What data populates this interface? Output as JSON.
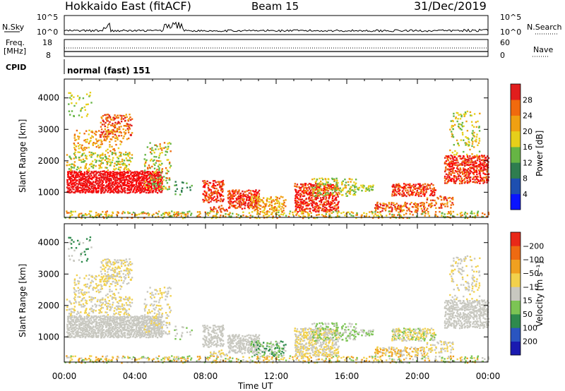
{
  "header": {
    "title": "Hokkaido East (fitACF)",
    "beam": "Beam 15",
    "date": "31/Dec/2019"
  },
  "colors": {
    "power_scale": [
      "#0a14ff",
      "#1e4fb0",
      "#2e7d4f",
      "#66b544",
      "#e6cf1a",
      "#f0a012",
      "#f06a0e",
      "#e11d1d",
      "#ff0000"
    ],
    "velocity_scale": [
      "#1a1ab0",
      "#2a55c0",
      "#2e8a4d",
      "#7cc454",
      "#c8c8c0",
      "#f2d14c",
      "#f0a020",
      "#ee6a12",
      "#e82818",
      "#ff0000"
    ]
  },
  "chart_data": [
    {
      "type": "line",
      "name": "n-sky-panel",
      "left_label": "N.Sky",
      "right_label": "N.Search",
      "left_ticks": [
        "10^5",
        "10^0"
      ],
      "right_ticks": [
        "10^5",
        "10^0"
      ],
      "x": [
        "00:00",
        "04:00",
        "08:00",
        "12:00",
        "16:00",
        "20:00",
        "00:00"
      ]
    },
    {
      "type": "line",
      "name": "freq-nave-panel",
      "left_label": "Freq. [MHz]",
      "right_label": "Nave",
      "left_ticks": [
        "18",
        "8"
      ],
      "right_ticks": [
        "60",
        "0"
      ],
      "left_ylim": [
        8,
        18
      ],
      "right_ylim": [
        0,
        60
      ]
    },
    {
      "type": "table",
      "name": "cpid-panel",
      "label": "CPID",
      "value": "normal (fast) 151"
    },
    {
      "type": "heatmap",
      "name": "power-panel",
      "ylabel": "Slant Range [km]",
      "yticks": [
        1000,
        2000,
        3000,
        4000
      ],
      "ylim": [
        200,
        4600
      ],
      "xlim_hours": [
        0,
        24
      ],
      "colorbar_label": "Power [dB]",
      "colorbar_ticks": [
        "4",
        "8",
        "12",
        "16",
        "20",
        "24",
        "28"
      ],
      "colorbar_range": [
        0,
        32
      ]
    },
    {
      "type": "heatmap",
      "name": "velocity-panel",
      "ylabel": "Slant Range [km]",
      "yticks": [
        1000,
        2000,
        3000,
        4000
      ],
      "ylim": [
        200,
        4600
      ],
      "xlim_hours": [
        0,
        24
      ],
      "xticks": [
        "00:00",
        "04:00",
        "08:00",
        "12:00",
        "16:00",
        "20:00",
        "00:00"
      ],
      "xlabel": "Time UT",
      "colorbar_label": "Velocity [m s⁻¹]",
      "colorbar_ticks": [
        "200",
        "100",
        "50",
        "15",
        "−15",
        "−50",
        "−100",
        "−200"
      ]
    }
  ]
}
